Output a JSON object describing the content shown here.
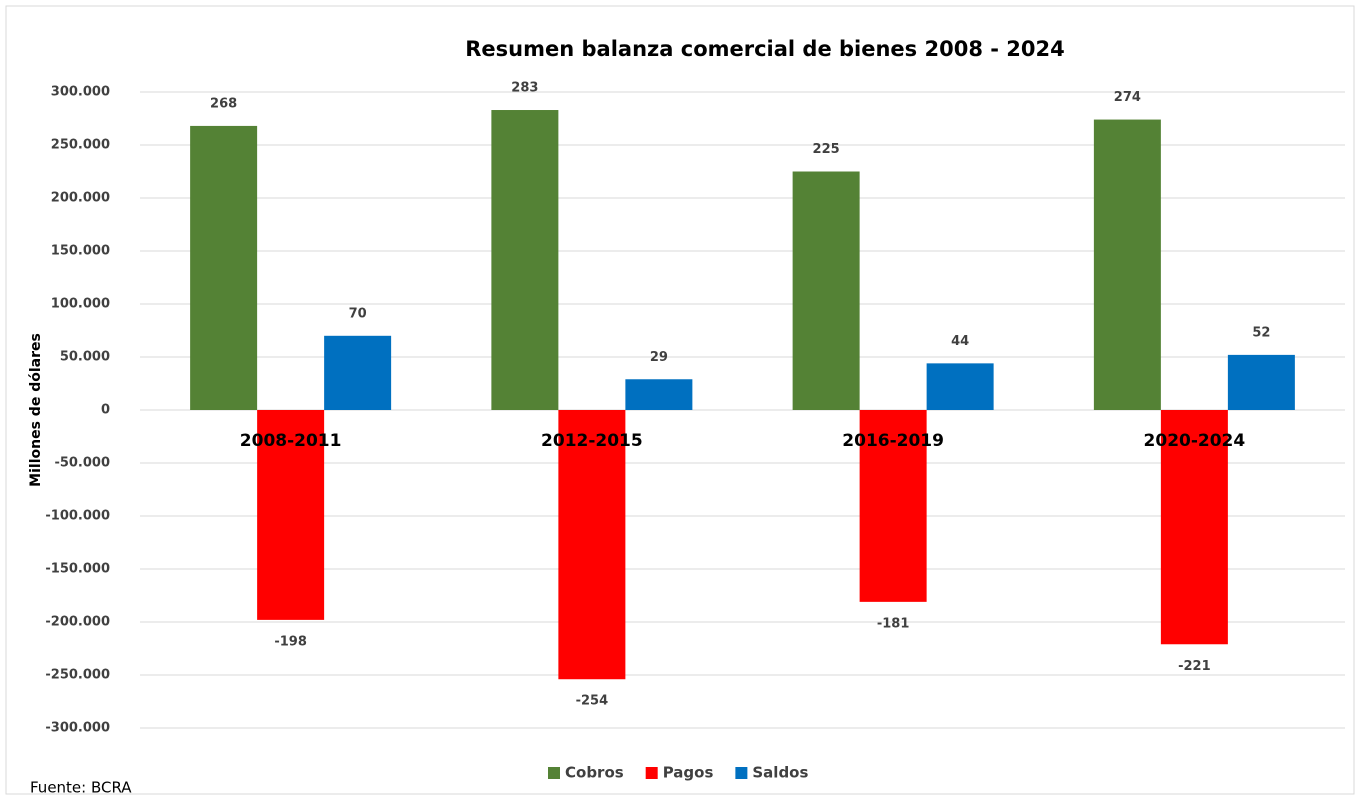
{
  "chart_data": {
    "type": "bar",
    "title": "Resumen balanza comercial de bienes 2008 - 2024",
    "ylabel": "Millones de dólares",
    "source": "Fuente: BCRA",
    "categories": [
      "2008-2011",
      "2012-2015",
      "2016-2019",
      "2020-2024"
    ],
    "series": [
      {
        "name": "Cobros",
        "color": "#548235",
        "values": [
          268000,
          283000,
          225000,
          274000
        ],
        "value_labels": [
          "268",
          "283",
          "225",
          "274"
        ]
      },
      {
        "name": "Pagos",
        "color": "#ff0000",
        "values": [
          -198000,
          -254000,
          -181000,
          -221000
        ],
        "value_labels": [
          "-198",
          "-254",
          "-181",
          "-221"
        ]
      },
      {
        "name": "Saldos",
        "color": "#0070c0",
        "values": [
          70000,
          29000,
          44000,
          52000
        ],
        "value_labels": [
          "70",
          "29",
          "44",
          "52"
        ]
      }
    ],
    "ylim": [
      -300000,
      300000
    ],
    "yticks": [
      {
        "value": -300000,
        "label": "-300.000"
      },
      {
        "value": -250000,
        "label": "-250.000"
      },
      {
        "value": -200000,
        "label": "-200.000"
      },
      {
        "value": -150000,
        "label": "-150.000"
      },
      {
        "value": -100000,
        "label": "-100.000"
      },
      {
        "value": -50000,
        "label": "-50.000"
      },
      0,
      {
        "value": 50000,
        "label": "50.000"
      },
      {
        "value": 100000,
        "label": "100.000"
      },
      {
        "value": 150000,
        "label": "150.000"
      },
      {
        "value": 200000,
        "label": "200.000"
      },
      {
        "value": 250000,
        "label": "250.000"
      },
      {
        "value": 300000,
        "label": "300.000"
      }
    ],
    "grid": true,
    "legend": "bottom"
  }
}
